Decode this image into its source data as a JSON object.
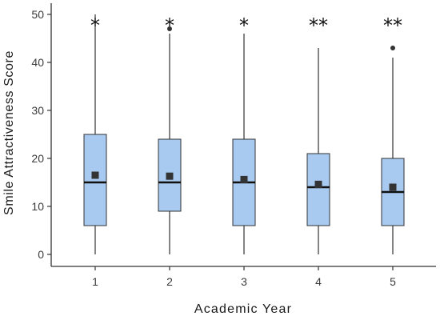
{
  "chart_data": {
    "type": "box",
    "title": "",
    "xlabel": "Academic Year",
    "ylabel": "Smile Attractiveness Score",
    "categories": [
      "1",
      "2",
      "3",
      "4",
      "5"
    ],
    "ylim": [
      0,
      51
    ],
    "yticks": [
      0,
      10,
      20,
      30,
      40,
      50
    ],
    "grid": false,
    "legend": "none",
    "box_color": "#a9caf0",
    "box_edge_color": "#333333",
    "mean_marker_color": "#333333",
    "boxes": [
      {
        "category": "1",
        "min": 0,
        "q1": 6,
        "median": 15,
        "q3": 25,
        "max": 50,
        "mean": 16.5,
        "outliers": [],
        "significance": "*"
      },
      {
        "category": "2",
        "min": 0,
        "q1": 9,
        "median": 15,
        "q3": 24,
        "max": 46,
        "mean": 16.3,
        "outliers": [
          47
        ],
        "significance": "*"
      },
      {
        "category": "3",
        "min": 0,
        "q1": 6,
        "median": 15,
        "q3": 24,
        "max": 46,
        "mean": 15.6,
        "outliers": [],
        "significance": "*"
      },
      {
        "category": "4",
        "min": 0,
        "q1": 6,
        "median": 14,
        "q3": 21,
        "max": 43,
        "mean": 14.6,
        "outliers": [],
        "significance": "**"
      },
      {
        "category": "5",
        "min": 0,
        "q1": 6,
        "median": 13,
        "q3": 20,
        "max": 41,
        "mean": 14.0,
        "outliers": [
          43
        ],
        "significance": "**"
      }
    ]
  }
}
